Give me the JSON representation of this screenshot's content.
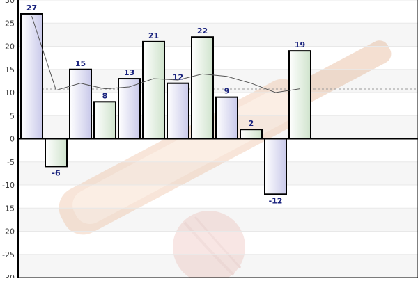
{
  "chart_data": {
    "type": "bar",
    "title": "",
    "xlabel": "",
    "ylabel": "",
    "ylim": [
      -30,
      30
    ],
    "yticks": [
      -30,
      -25,
      -20,
      -15,
      -10,
      -5,
      0,
      5,
      10,
      15,
      20,
      25,
      30
    ],
    "ytick_labels": [
      "-30",
      "-25",
      "-20",
      "-15",
      "-10",
      "-5",
      "0",
      "5",
      "10",
      "15",
      "20",
      "25",
      "30"
    ],
    "grid": true,
    "legend": "none",
    "values": [
      27,
      -6,
      15,
      8,
      13,
      21,
      12,
      22,
      9,
      2,
      -12,
      19
    ],
    "data_labels": [
      "27",
      "-6",
      "15",
      "8",
      "13",
      "21",
      "12",
      "22",
      "9",
      "2",
      "-12",
      "19"
    ],
    "trend_line": [
      26.5,
      10.5,
      12,
      10.8,
      11.2,
      13,
      12.7,
      14,
      13.5,
      12,
      10,
      10.8
    ],
    "average_line": 10.75,
    "colors": {
      "bar_odd": "#d9d9f0",
      "bar_even": "#dfeede",
      "bar_border": "#000000",
      "label_color": "#1a237e",
      "trend_color": "#555555",
      "average_color": "#999999",
      "band_color": "#f6f6f6",
      "grid_color": "#e8e8e8"
    }
  }
}
